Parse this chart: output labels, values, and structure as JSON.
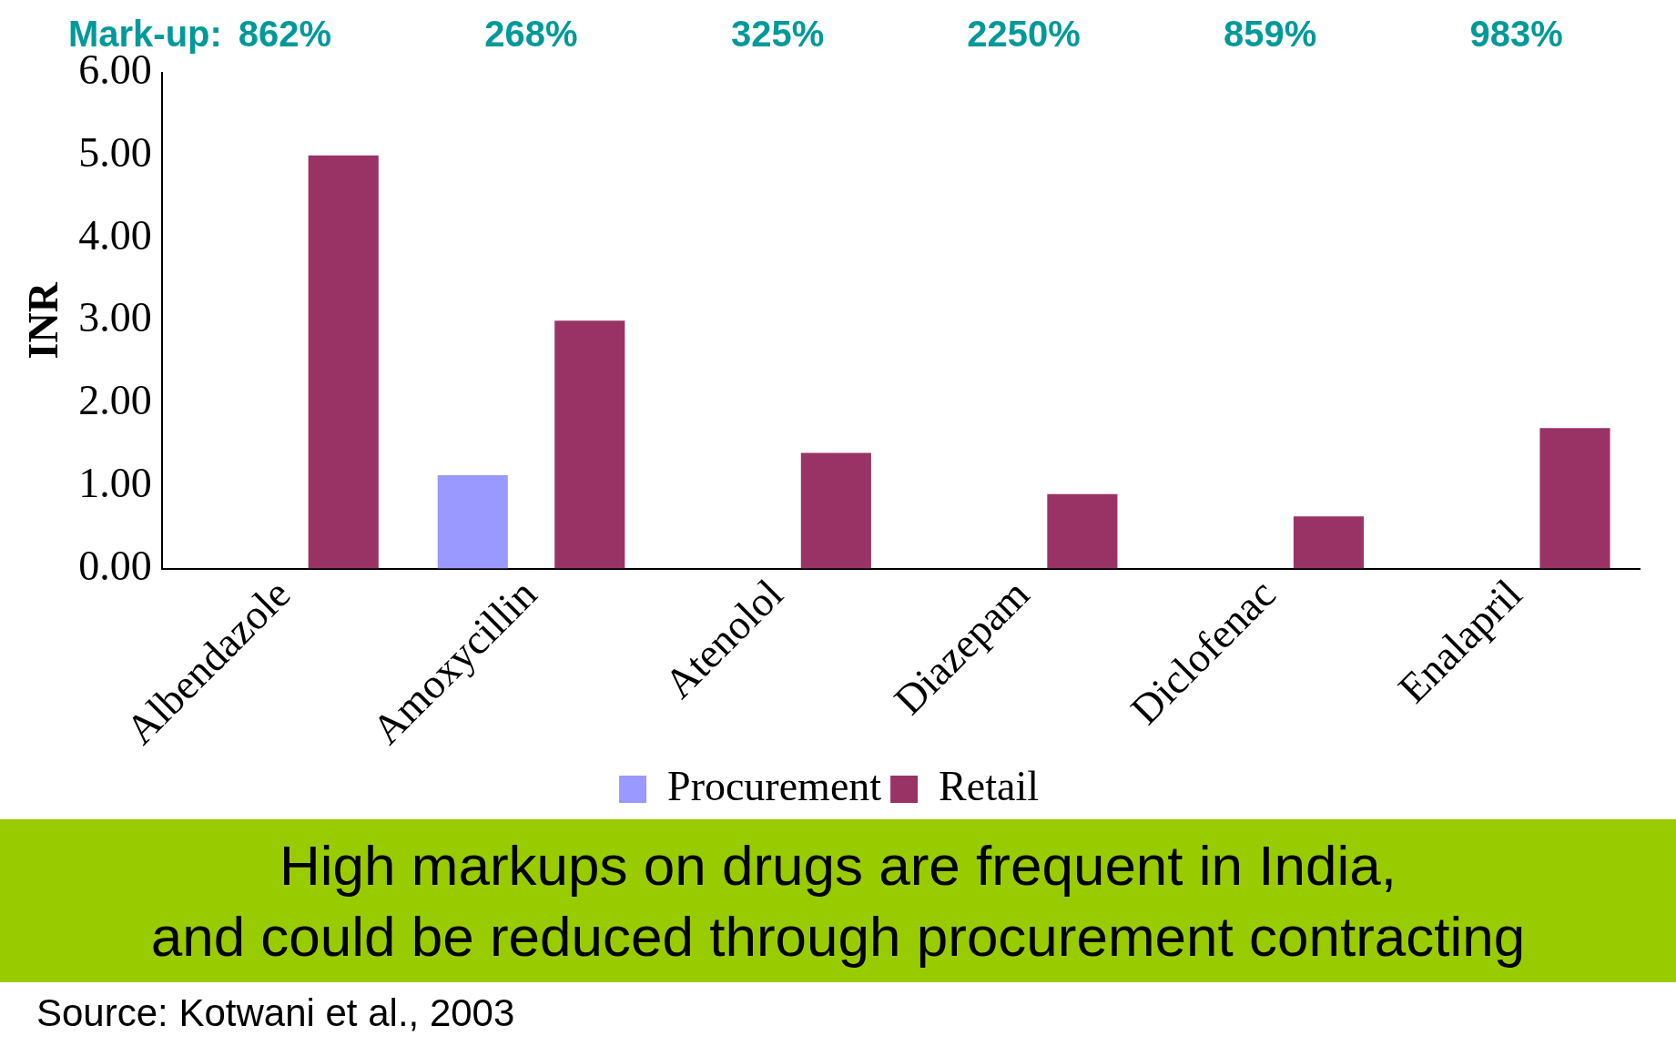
{
  "chart_data": {
    "type": "bar",
    "ylabel": "INR",
    "categories": [
      "Albendazole",
      "Amoxycillin",
      "Atenolol",
      "Diazepam",
      "Diclofenac",
      "Enalapril"
    ],
    "series": [
      {
        "name": "Procurement",
        "color": "#9999ff",
        "values": [
          null,
          1.13,
          null,
          null,
          null,
          null
        ]
      },
      {
        "name": "Retail",
        "color": "#993366",
        "values": [
          5.0,
          3.0,
          1.4,
          0.9,
          0.63,
          1.7
        ]
      }
    ],
    "ylim": [
      0,
      6
    ],
    "yticks": [
      {
        "value": 0,
        "label": "0.00"
      },
      {
        "value": 1,
        "label": "1.00"
      },
      {
        "value": 2,
        "label": "2.00"
      },
      {
        "value": 3,
        "label": "3.00"
      },
      {
        "value": 4,
        "label": "4.00"
      },
      {
        "value": 5,
        "label": "5.00"
      },
      {
        "value": 6,
        "label": "6.00"
      }
    ],
    "grid": false,
    "legend": "bottom",
    "annotations": [
      "Mark-up:",
      "862%",
      "268%",
      "325%",
      "2250%",
      "859%",
      "983%",
      "High markups on drugs are frequent in India,\nand could be reduced through procurement contracting",
      "Source: Kotwani et al., 2003"
    ]
  }
}
